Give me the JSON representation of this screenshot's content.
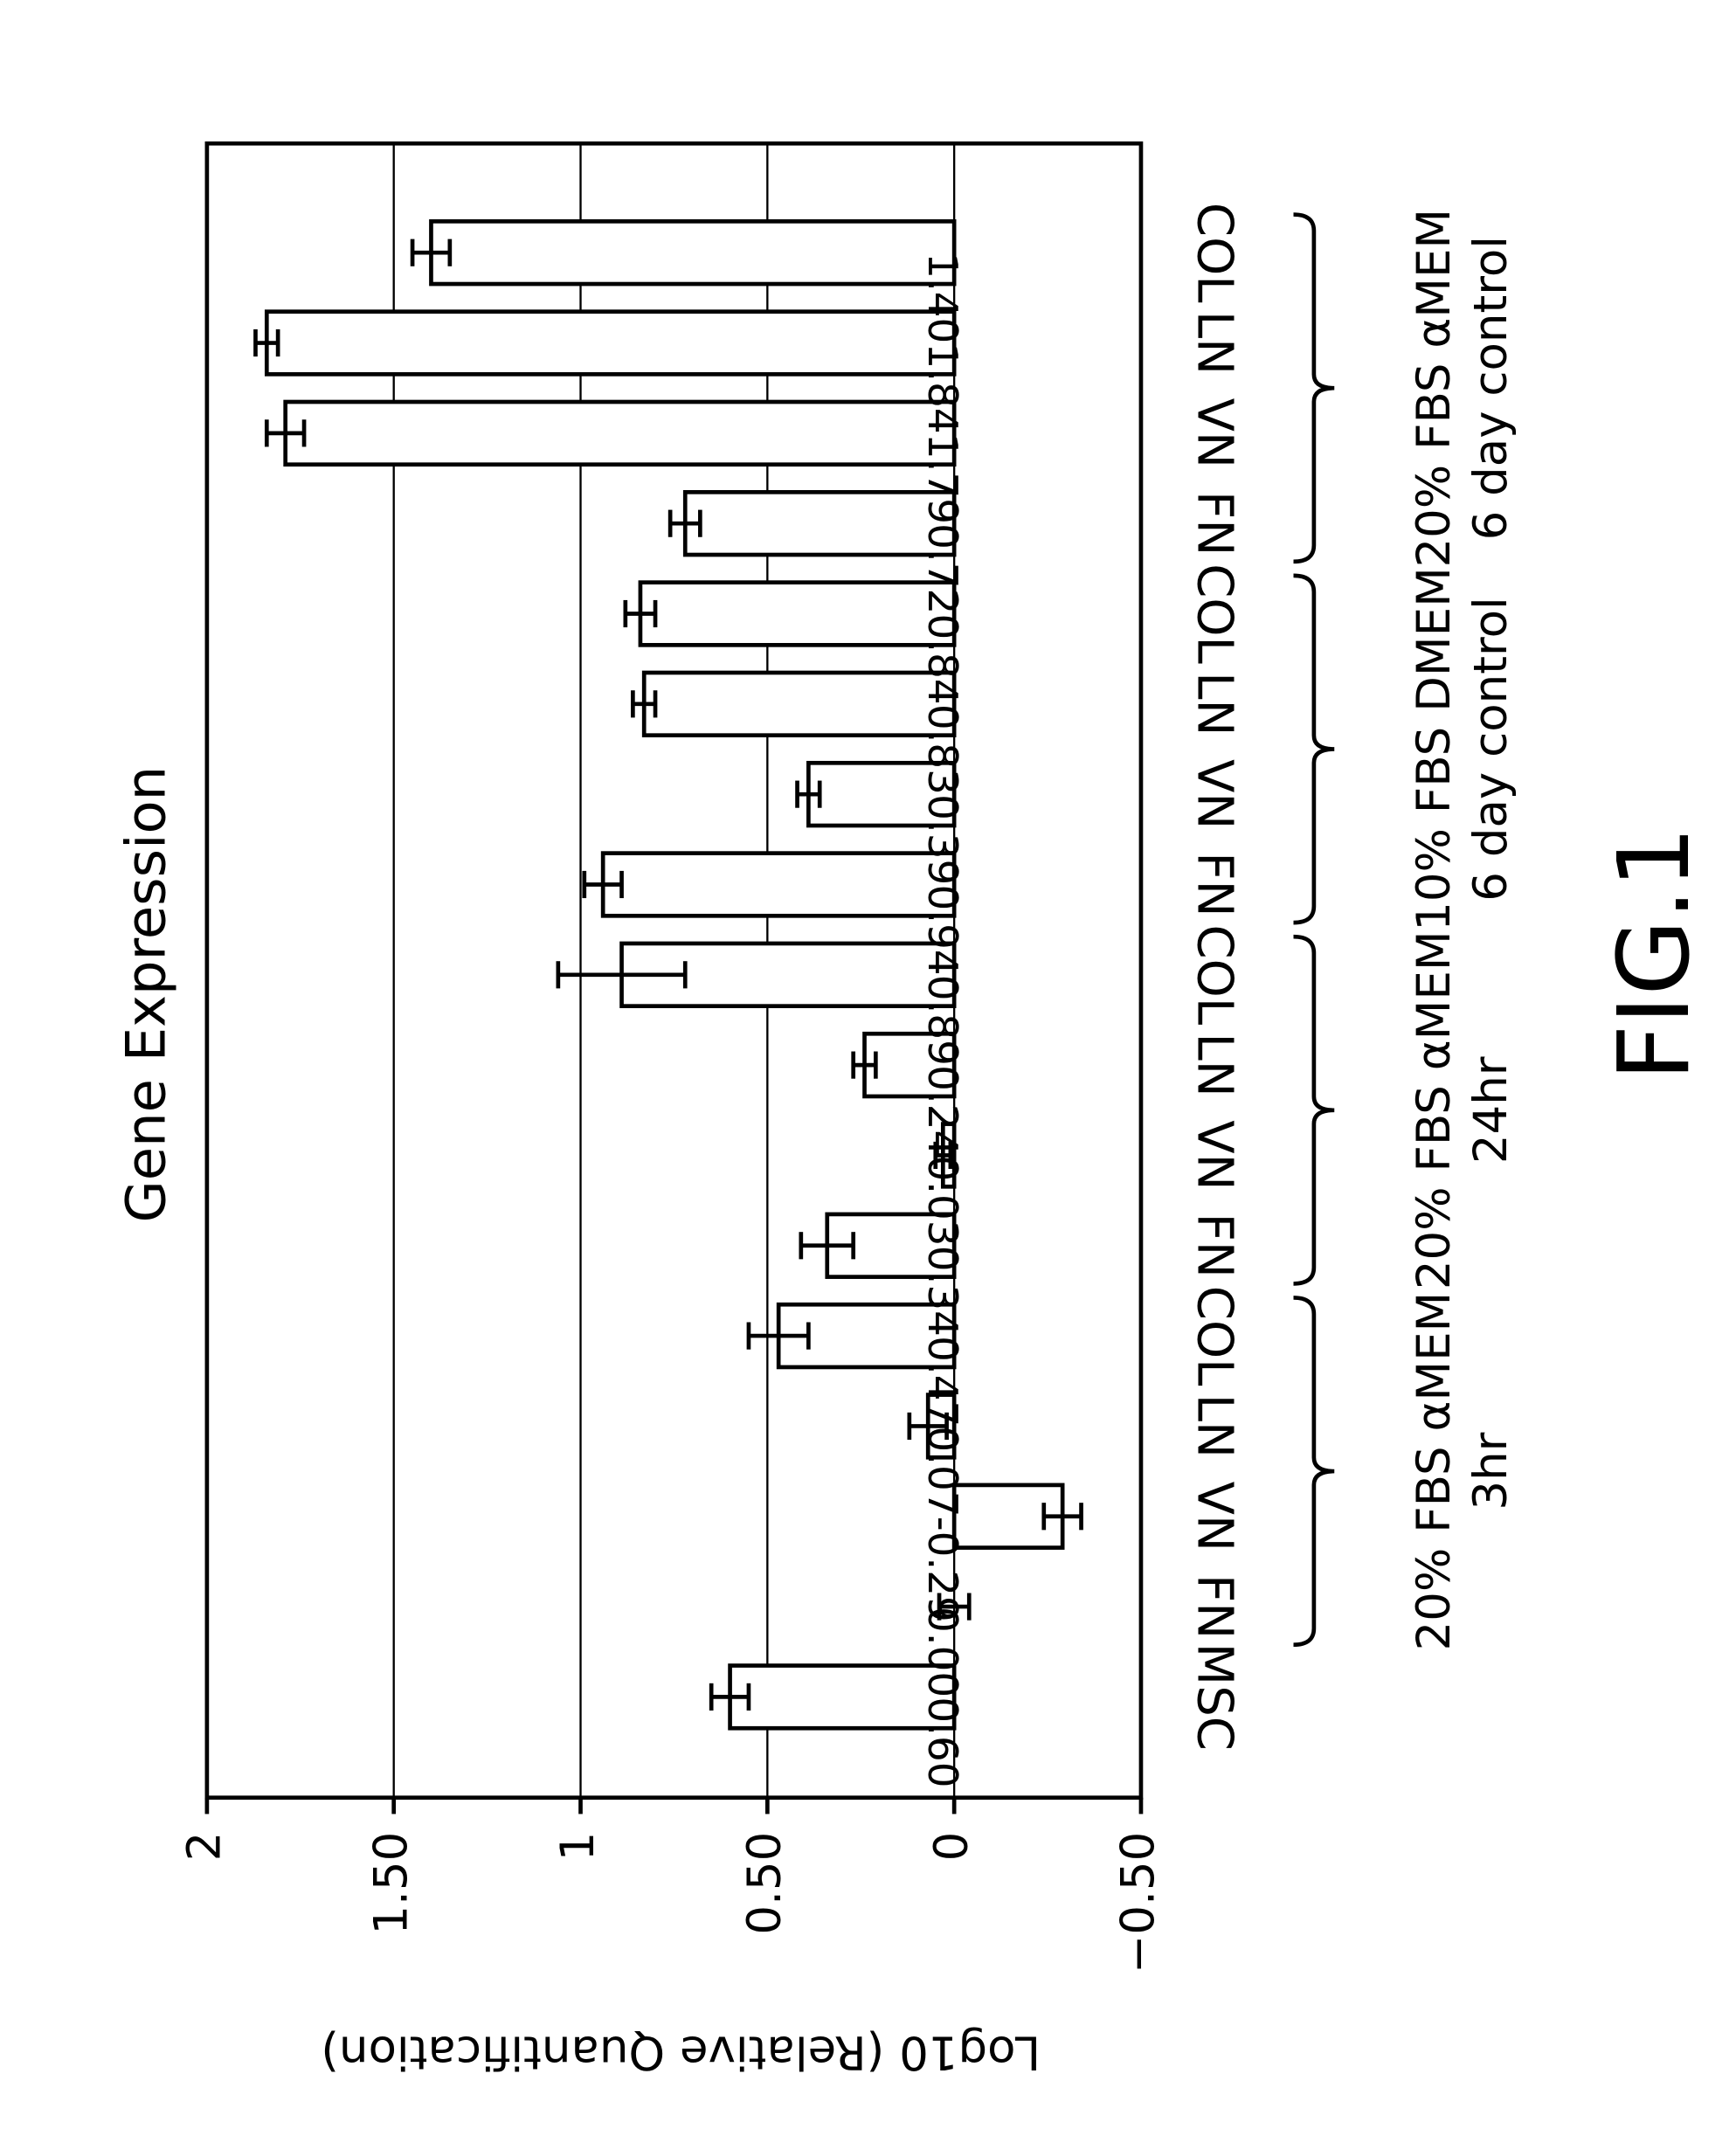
{
  "chart_data": {
    "type": "bar",
    "title": "Gene Expression",
    "y_label": "Log10 (Relative Quantification)",
    "figure_label": "FIG.1",
    "categories": [
      "MSC",
      "FN",
      "VN",
      "LN",
      "COL",
      "FN",
      "VN",
      "LN",
      "COL",
      "FN",
      "VN",
      "LN",
      "COL",
      "FN",
      "VN",
      "LN",
      "COL"
    ],
    "values": [
      0.6,
      0.0,
      -0.29,
      0.07,
      0.47,
      0.34,
      0.03,
      0.24,
      0.89,
      0.94,
      0.39,
      0.83,
      0.84,
      0.72,
      1.79,
      1.84,
      1.4
    ],
    "value_labels": [
      "0.60",
      "0.00",
      "-0.29",
      "0.07",
      "0.47",
      "0.34",
      "0.03",
      "0.24",
      "0.89",
      "0.94",
      "0.39",
      "0.83",
      "0.84",
      "0.72",
      "1.79",
      "1.84",
      "1.40"
    ],
    "errors": [
      0.05,
      0.04,
      0.05,
      0.05,
      0.08,
      0.07,
      0.02,
      0.03,
      0.17,
      0.05,
      0.03,
      0.03,
      0.04,
      0.04,
      0.05,
      0.03,
      0.05
    ],
    "color": "#ffffff",
    "ylim": [
      -0.5,
      2
    ],
    "yticks": [
      2,
      {
        "value": 1.5,
        "label": "1.50"
      },
      1,
      {
        "value": 0.5,
        "label": "0.50"
      },
      0,
      {
        "value": -0.5,
        "label": "−0.50"
      }
    ],
    "grid": true,
    "groups": [
      {
        "lines": [
          "20% FBS αMEM",
          "3hr"
        ]
      },
      {
        "lines": [
          "20% FBS αMEM",
          "24hr"
        ]
      },
      {
        "lines": [
          "10% FBS DMEM",
          "6 day control"
        ]
      },
      {
        "lines": [
          "20% FBS αMEM",
          "6 day control"
        ]
      }
    ]
  }
}
